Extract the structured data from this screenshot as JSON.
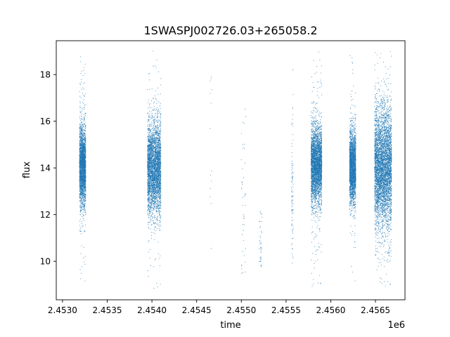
{
  "chart_data": {
    "type": "scatter",
    "title": "1SWASPJ002726.03+265058.2",
    "xlabel": "time",
    "ylabel": "flux",
    "x_offset_label": "1e6",
    "xlim": [
      2.45293,
      2.45683
    ],
    "ylim": [
      8.35,
      19.45
    ],
    "x_ticks": [
      2.453,
      2.4535,
      2.454,
      2.4545,
      2.455,
      2.4555,
      2.456,
      2.4565
    ],
    "x_tick_labels": [
      "2.4530",
      "2.4535",
      "2.4540",
      "2.4545",
      "2.4550",
      "2.4555",
      "2.4560",
      "2.4565"
    ],
    "y_ticks": [
      10,
      12,
      14,
      16,
      18
    ],
    "y_tick_labels": [
      "10",
      "12",
      "14",
      "16",
      "18"
    ],
    "grid": false,
    "legend": "none",
    "marker_color": "#1f77b4",
    "series": [
      {
        "clusters": [
          {
            "x_range": [
              2.45319,
              2.45326
            ],
            "y_mean": 14.1,
            "y_sd": 0.85,
            "n": 2600,
            "y_min": 8.8,
            "y_max": 19.0
          },
          {
            "x_range": [
              2.45395,
              2.4541
            ],
            "y_mean": 14.0,
            "y_sd": 0.95,
            "n": 3600,
            "y_min": 8.8,
            "y_max": 19.1
          },
          {
            "x_range": [
              2.45465,
              2.45467
            ],
            "y_mean": 15.0,
            "y_sd": 2.0,
            "n": 14,
            "y_min": 10.4,
            "y_max": 18.2
          },
          {
            "x_range": [
              2.455,
              2.45505
            ],
            "y_mean": 12.5,
            "y_sd": 2.2,
            "n": 45,
            "y_min": 9.4,
            "y_max": 17.0
          },
          {
            "x_range": [
              2.4552,
              2.45523
            ],
            "y_mean": 10.8,
            "y_sd": 0.9,
            "n": 40,
            "y_min": 9.6,
            "y_max": 12.3
          },
          {
            "x_range": [
              2.45556,
              2.45558
            ],
            "y_mean": 12.5,
            "y_sd": 1.8,
            "n": 90,
            "y_min": 9.9,
            "y_max": 18.2
          },
          {
            "x_range": [
              2.45578,
              2.4559
            ],
            "y_mean": 14.1,
            "y_sd": 0.8,
            "n": 3400,
            "y_min": 8.9,
            "y_max": 19.0
          },
          {
            "x_range": [
              2.45621,
              2.45628
            ],
            "y_mean": 14.0,
            "y_sd": 0.75,
            "n": 2400,
            "y_min": 9.0,
            "y_max": 19.0
          },
          {
            "x_range": [
              2.45649,
              2.45668
            ],
            "y_mean": 14.0,
            "y_sd": 1.25,
            "n": 4600,
            "y_min": 8.9,
            "y_max": 19.0
          }
        ]
      }
    ]
  }
}
